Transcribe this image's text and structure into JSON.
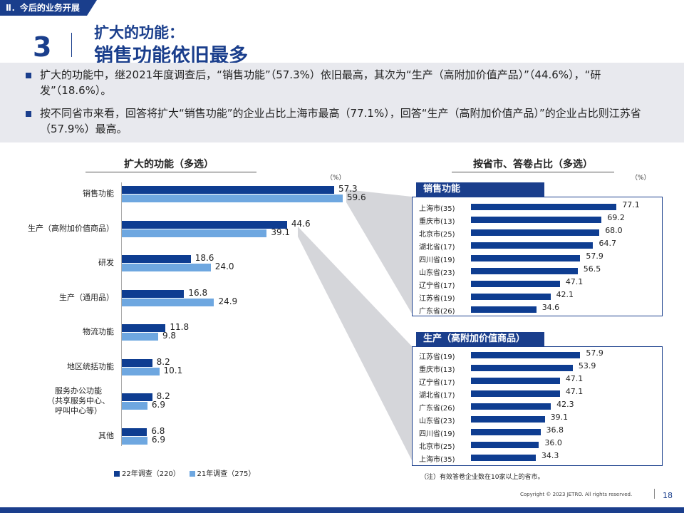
{
  "section_tag": "Ⅱ．今后的业务开展",
  "slide_number": "3",
  "title_line1": "扩大的功能：",
  "title_line2": "销售功能依旧最多",
  "bullets": [
    "扩大的功能中，继2021年度调查后，“销售功能”（57.3%）依旧最高，其次为“生产（高附加价值产品）”（44.6%），“研发”（18.6%）。",
    "按不同省市来看，回答将扩大“销售功能”的企业占比上海市最高（77.1%），回答“生产（高附加价值产品）”的企业占比则江苏省（57.9%）最高。"
  ],
  "chart_data": [
    {
      "type": "bar",
      "orientation": "horizontal",
      "title": "扩大的功能（多选）",
      "unit": "（%）",
      "categories": [
        "销售功能",
        "生产（高附加价值商品）",
        "研发",
        "生产（通用品）",
        "物流功能",
        "地区统括功能",
        "服务办公功能（共享服务中心、呼叫中心等）",
        "其他"
      ],
      "category_lines": [
        [
          "销售功能"
        ],
        [
          "生产（高附加价值商品）"
        ],
        [
          "研发"
        ],
        [
          "生产（通用品）"
        ],
        [
          "物流功能"
        ],
        [
          "地区统括功能"
        ],
        [
          "服务办公功能",
          "（共享服务中心、",
          "呼叫中心等）"
        ],
        [
          "其他"
        ]
      ],
      "series": [
        {
          "name": "22年调查（220）",
          "color": "#0e3d91",
          "values": [
            57.3,
            44.6,
            18.6,
            16.8,
            11.8,
            8.2,
            8.2,
            6.8
          ]
        },
        {
          "name": "21年调查（275）",
          "color": "#6ea7e0",
          "values": [
            59.6,
            39.1,
            24.0,
            24.9,
            9.8,
            10.1,
            6.9,
            6.9
          ]
        }
      ]
    },
    {
      "type": "bar",
      "orientation": "horizontal",
      "title": "按省市、答卷占比（多选）",
      "panel": "销售功能",
      "unit": "（%）",
      "categories": [
        "上海市(35)",
        "重庆市(13)",
        "北京市(25)",
        "湖北省(17)",
        "四川省(19)",
        "山东省(23)",
        "辽宁省(17)",
        "江苏省(19)",
        "广东省(26)"
      ],
      "values": [
        77.1,
        69.2,
        68.0,
        64.7,
        57.9,
        56.5,
        47.1,
        42.1,
        34.6
      ]
    },
    {
      "type": "bar",
      "orientation": "horizontal",
      "panel": "生产（高附加价值商品）",
      "categories": [
        "江苏省(19)",
        "重庆市(13)",
        "辽宁省(17)",
        "湖北省(17)",
        "广东省(26)",
        "山东省(23)",
        "四川省(19)",
        "北京市(25)",
        "上海市(35)"
      ],
      "values": [
        57.9,
        53.9,
        47.1,
        47.1,
        42.3,
        39.1,
        36.8,
        36.0,
        34.3
      ]
    }
  ],
  "legend": {
    "s22": "22年调查（220）",
    "s21": "21年调查（275）"
  },
  "note": "（注）有效答卷企业数在10家以上的省市。",
  "copyright": "Copyright © 2023 JETRO. All rights reserved.",
  "page_number": "18",
  "colors": {
    "accent": "#1a3e8c",
    "series22": "#0e3d91",
    "series21": "#6ea7e0"
  }
}
